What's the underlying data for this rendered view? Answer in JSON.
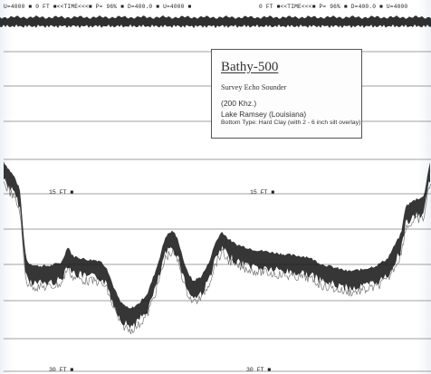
{
  "header": {
    "left": "U=4000  ■    0 FT ■<<TIME<<<■ P= 96%  ■ D=400.0 ■ U=4000  ■",
    "right": "0 FT ■<<TIME<<<■ P= 96%  ■ D=400.0 ■ U=4000"
  },
  "label": {
    "title": "Bathy-500",
    "subtitle": "Survey Echo Sounder",
    "frequency": "(200 Khz.)",
    "location": "Lake Ramsey (Louisiana)",
    "bottom_type": "Bottom Type: Hard Clay (with 2 - 6 inch silt overlay)"
  },
  "depth_markers": {
    "mid_left": "15 FT ■",
    "mid_right": "15 FT ■",
    "bottom_left": "30 FT ■",
    "bottom_right": "30 FT ■"
  },
  "colors": {
    "ink": "#1a1a1a",
    "grid": "#444444",
    "paper": "#ffffff"
  }
}
